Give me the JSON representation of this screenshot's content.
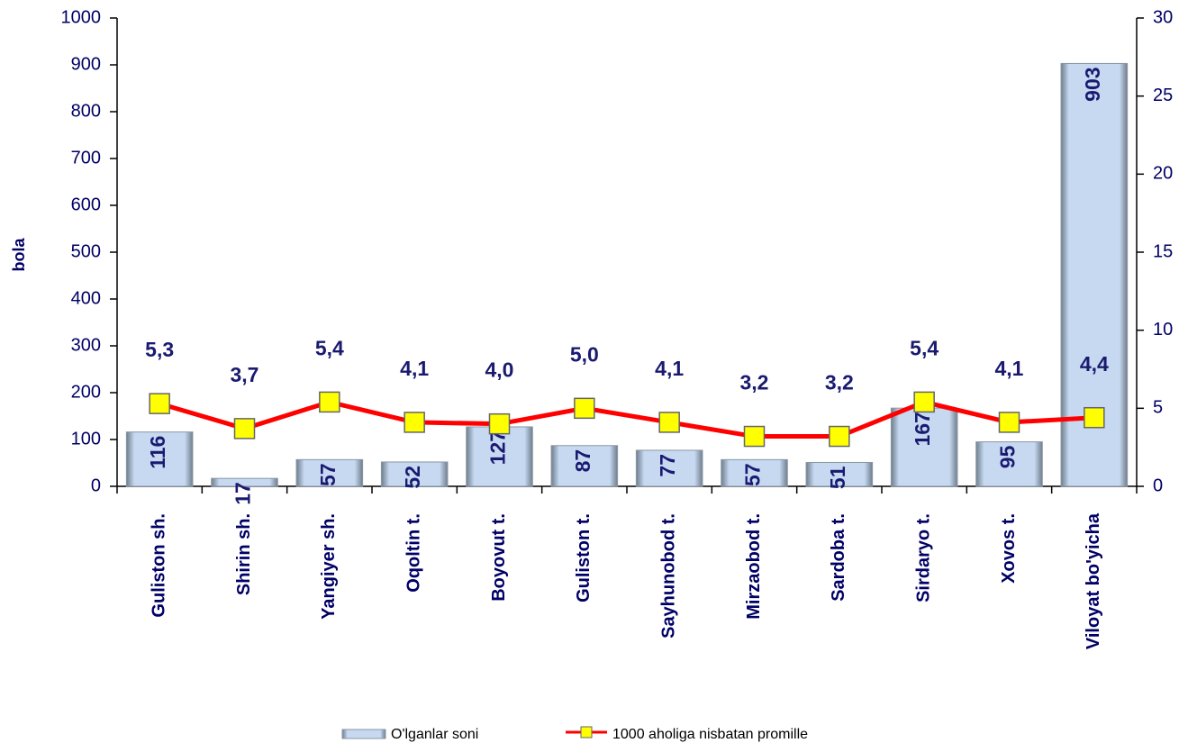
{
  "chart_data": {
    "type": "bar_line",
    "y_label": "bola",
    "categories": [
      "Guliston sh.",
      "Shirin sh.",
      "Yangiyer sh.",
      "Oqoltin t.",
      "Boyovut t.",
      "Guliston t.",
      "Sayhunobod t.",
      "Mirzaobod t.",
      "Sardoba t.",
      "Sirdaryo t.",
      "Xovos t.",
      "Viloyat bo'yicha"
    ],
    "series": [
      {
        "name": "O'lganlar soni",
        "type": "bar",
        "color": "#c6d9f1",
        "values": [
          116,
          17,
          57,
          52,
          127,
          87,
          77,
          57,
          51,
          167,
          95,
          903
        ]
      },
      {
        "name": "1000 aholiga nisbatan promille",
        "type": "line",
        "axis": "y2",
        "color": "#ff0000",
        "marker_color": "#ffff00",
        "values": [
          5.3,
          3.7,
          5.4,
          4.1,
          4.0,
          5.0,
          4.1,
          3.2,
          3.2,
          5.4,
          4.1,
          4.4
        ],
        "value_labels": [
          "5,3",
          "3,7",
          "5,4",
          "4,1",
          "4,0",
          "5,0",
          "4,1",
          "3,2",
          "3,2",
          "5,4",
          "4,1",
          "4,4"
        ]
      }
    ],
    "ylim": [
      0,
      1000
    ],
    "yticks": [
      0,
      100,
      200,
      300,
      400,
      500,
      600,
      700,
      800,
      900,
      1000
    ],
    "y2lim": [
      0,
      30
    ],
    "y2ticks": [
      0,
      5,
      10,
      15,
      20,
      25,
      30
    ]
  }
}
